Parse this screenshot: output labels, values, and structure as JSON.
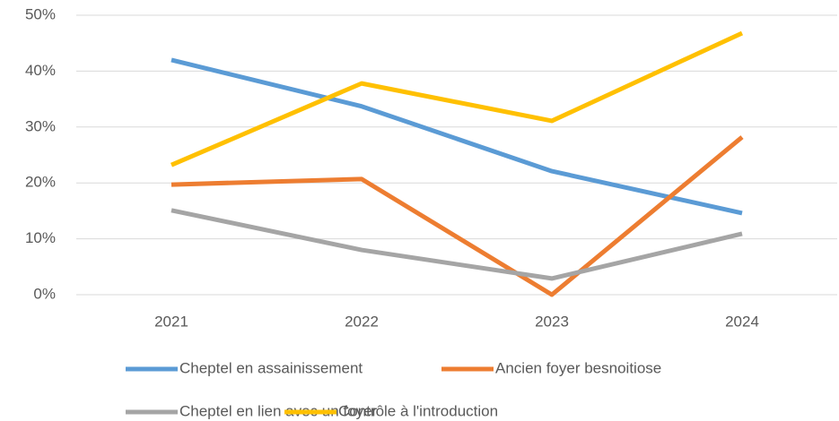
{
  "chart_data": {
    "type": "line",
    "categories": [
      "2021",
      "2022",
      "2023",
      "2024"
    ],
    "series": [
      {
        "name": "Cheptel en assainissement",
        "color": "#5b9bd5",
        "values": [
          42,
          33.7,
          22.1,
          14.6
        ]
      },
      {
        "name": "Ancien foyer besnoitiose",
        "color": "#ed7d31",
        "values": [
          19.7,
          20.7,
          0,
          28.2
        ]
      },
      {
        "name": "Cheptel en lien avec un foyer",
        "color": "#a5a5a5",
        "values": [
          15.1,
          8,
          2.9,
          10.9
        ]
      },
      {
        "name": "Contrôle à l'introduction",
        "color": "#ffc000",
        "values": [
          23.2,
          37.8,
          31.1,
          46.8
        ]
      }
    ],
    "ylim": [
      0,
      50
    ],
    "yticks": [
      {
        "value": 0,
        "label": "0%"
      },
      {
        "value": 10,
        "label": "10%"
      },
      {
        "value": 20,
        "label": "20%"
      },
      {
        "value": 30,
        "label": "30%"
      },
      {
        "value": 40,
        "label": "40%"
      },
      {
        "value": 50,
        "label": "50%"
      }
    ],
    "grid": true,
    "legend": "bottom"
  }
}
